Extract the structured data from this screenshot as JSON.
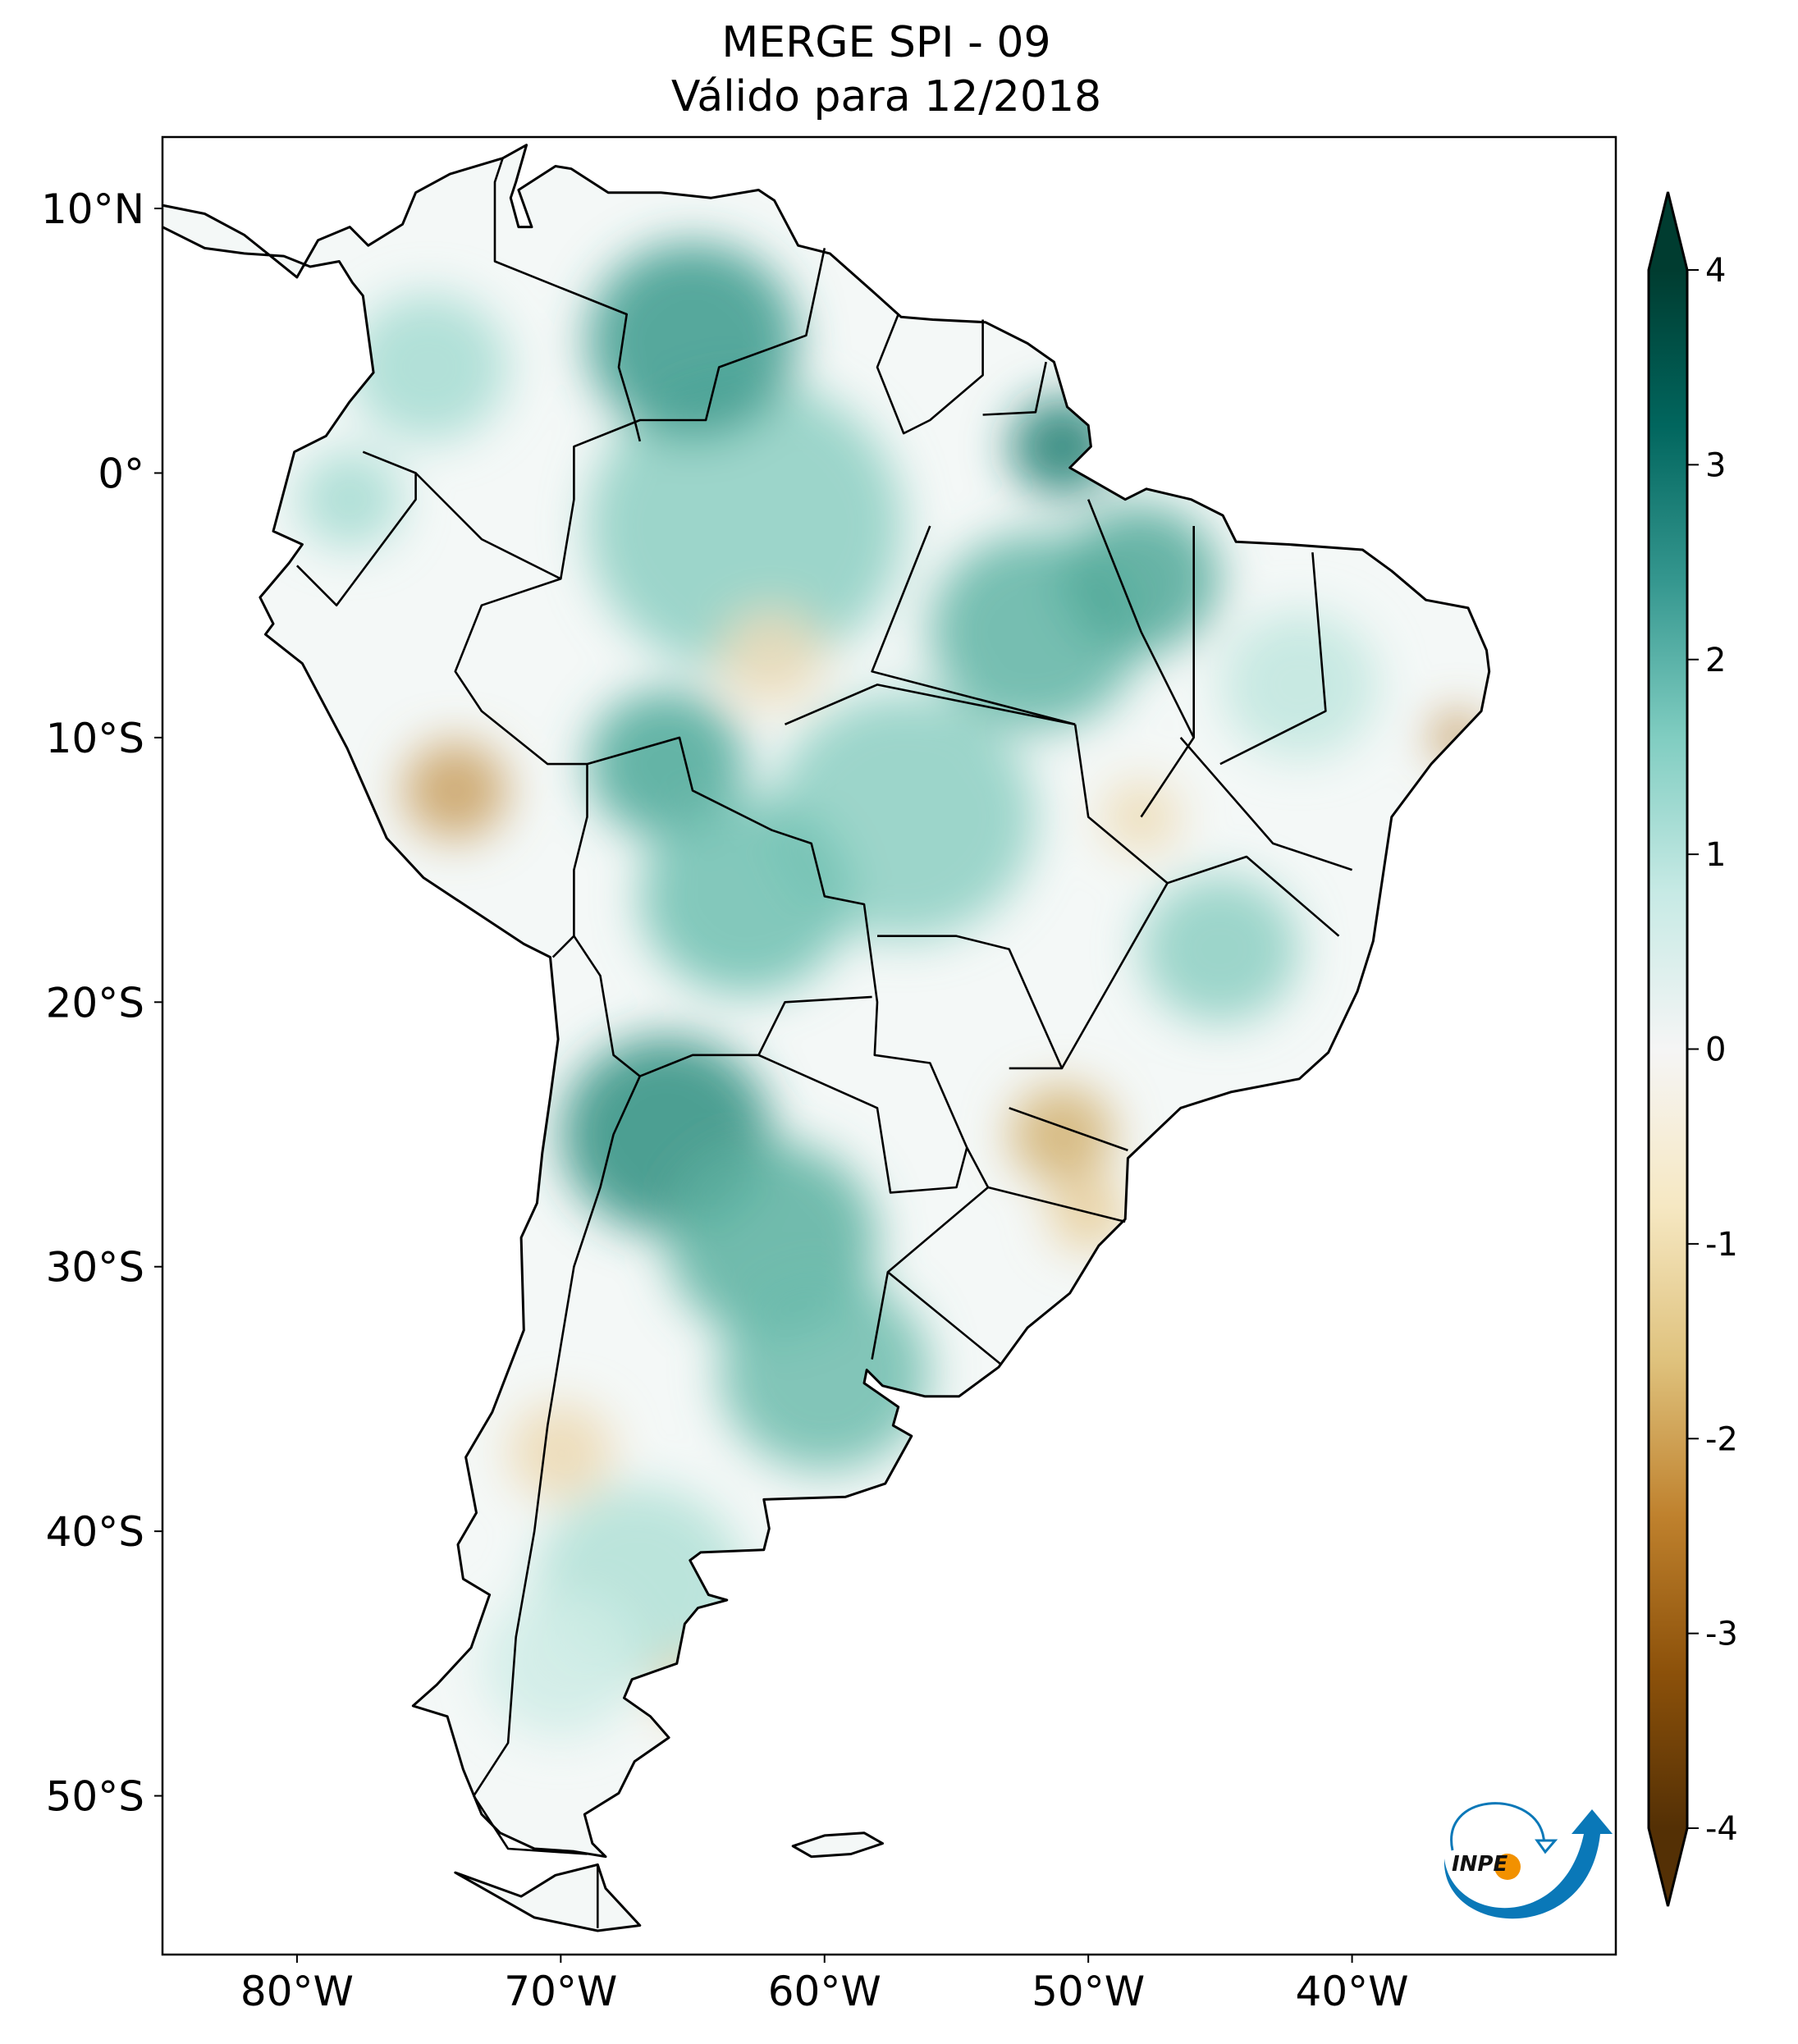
{
  "title": "MERGE   SPI - 09",
  "subtitle": "Válido para 12/2018",
  "lat_ticks": [
    {
      "value": 10,
      "label": "10°N"
    },
    {
      "value": 0,
      "label": "0°"
    },
    {
      "value": -10,
      "label": "10°S"
    },
    {
      "value": -20,
      "label": "20°S"
    },
    {
      "value": -30,
      "label": "30°S"
    },
    {
      "value": -40,
      "label": "40°S"
    },
    {
      "value": -50,
      "label": "50°S"
    }
  ],
  "lon_ticks": [
    {
      "value": -80,
      "label": "80°W"
    },
    {
      "value": -70,
      "label": "70°W"
    },
    {
      "value": -60,
      "label": "60°W"
    },
    {
      "value": -50,
      "label": "50°W"
    },
    {
      "value": -40,
      "label": "40°W"
    }
  ],
  "colorbar": {
    "min": -4,
    "max": 4,
    "extend": "both",
    "ticks": [
      {
        "value": 4,
        "label": "4"
      },
      {
        "value": 3,
        "label": "3"
      },
      {
        "value": 2,
        "label": "2"
      },
      {
        "value": 1,
        "label": "1"
      },
      {
        "value": 0,
        "label": "0"
      },
      {
        "value": -1,
        "label": "-1"
      },
      {
        "value": -2,
        "label": "-2"
      },
      {
        "value": -3,
        "label": "-3"
      },
      {
        "value": -4,
        "label": "-4"
      }
    ],
    "colors": [
      "#543005",
      "#8c510a",
      "#bf812d",
      "#dfc27d",
      "#f6e8c3",
      "#f5f5f5",
      "#c7eae5",
      "#80cdc1",
      "#35978f",
      "#01665e",
      "#003c30"
    ]
  },
  "map_extent": {
    "lon": [
      -85.1,
      -30
    ],
    "lat": [
      -56,
      12.7
    ]
  },
  "logo": {
    "text": "INPE",
    "blue": "#0a78b8",
    "orange": "#f29100"
  }
}
